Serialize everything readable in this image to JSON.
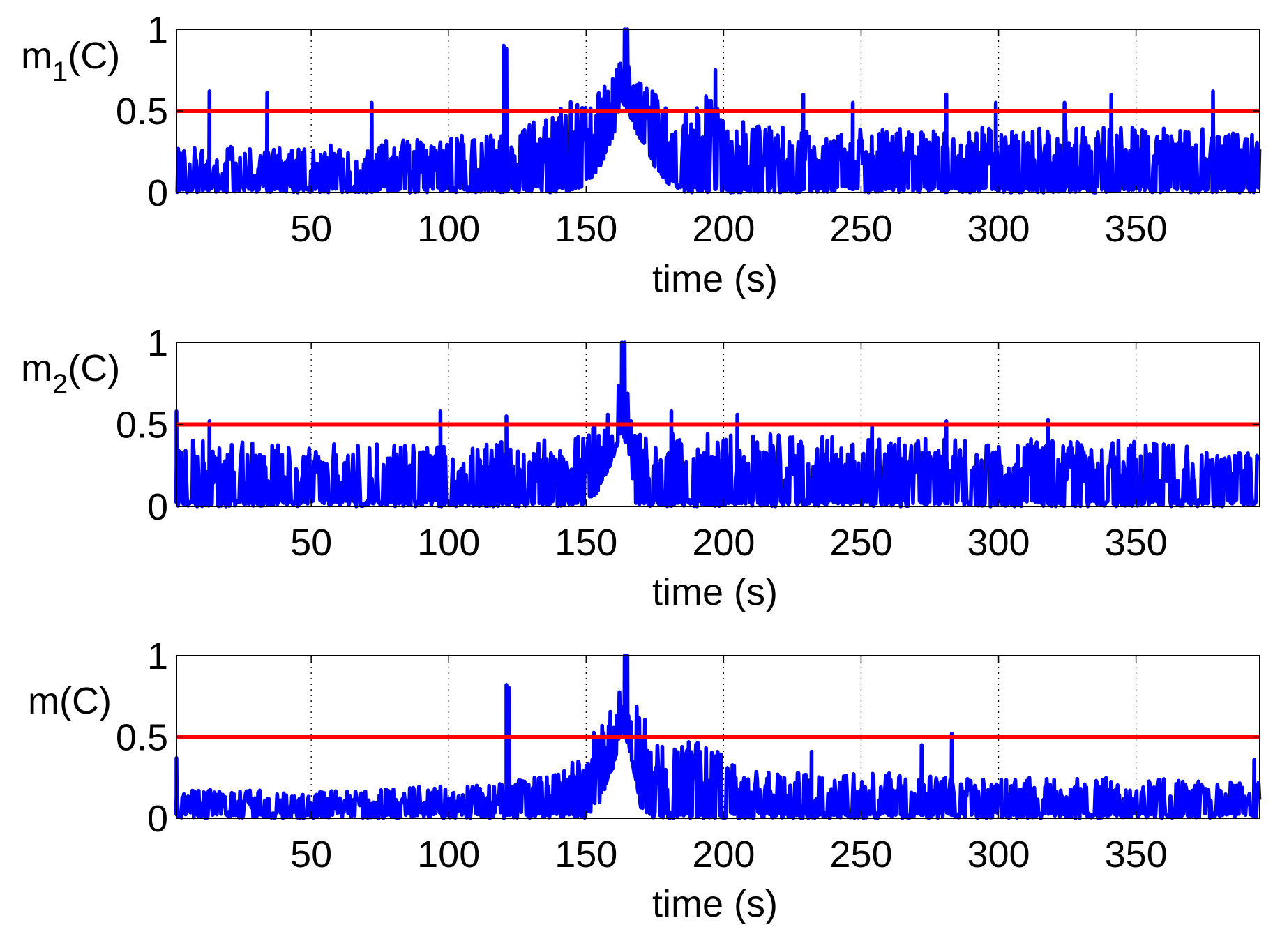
{
  "figure": {
    "background": "#ffffff",
    "signal_color": "#0000ff",
    "threshold_color": "#ff0000",
    "axis_color": "#000000",
    "grid_style": "dotted vertical"
  },
  "chart_data": [
    {
      "type": "line",
      "ylabel": {
        "main": "m",
        "sub": "1",
        "suffix": "(C)"
      },
      "xlabel": "time (s)",
      "xlim": [
        1,
        395
      ],
      "ylim": [
        0,
        1
      ],
      "xticks": [
        50,
        100,
        150,
        200,
        250,
        300,
        350
      ],
      "xtick_labels": [
        "50",
        "100",
        "150",
        "200",
        "250",
        "300",
        "350"
      ],
      "yticks": [
        0,
        0.5,
        1
      ],
      "ytick_labels": [
        "0",
        "0.5",
        "1"
      ],
      "grid": "x-dotted",
      "threshold": 0.5,
      "series": {
        "name": "m1(C)",
        "noise_floor": 0.0,
        "noise_level": 0.24,
        "noise_spread": 0.1,
        "envelope": [
          [
            1,
            0.27
          ],
          [
            20,
            0.28
          ],
          [
            50,
            0.3
          ],
          [
            100,
            0.34
          ],
          [
            120,
            0.38
          ],
          [
            140,
            0.52
          ],
          [
            150,
            0.6
          ],
          [
            155,
            0.66
          ],
          [
            160,
            0.7
          ],
          [
            163,
            0.85
          ],
          [
            166,
            0.82
          ],
          [
            170,
            0.7
          ],
          [
            175,
            0.62
          ],
          [
            180,
            0.55
          ],
          [
            185,
            0.45
          ],
          [
            190,
            0.6
          ],
          [
            195,
            0.7
          ],
          [
            200,
            0.48
          ],
          [
            210,
            0.42
          ],
          [
            250,
            0.4
          ],
          [
            300,
            0.4
          ],
          [
            350,
            0.4
          ],
          [
            395,
            0.38
          ]
        ],
        "floor_envelope": [
          [
            1,
            0.0
          ],
          [
            145,
            0.0
          ],
          [
            150,
            0.05
          ],
          [
            155,
            0.15
          ],
          [
            160,
            0.35
          ],
          [
            163,
            0.55
          ],
          [
            166,
            0.45
          ],
          [
            170,
            0.3
          ],
          [
            175,
            0.15
          ],
          [
            180,
            0.05
          ],
          [
            185,
            0.0
          ],
          [
            395,
            0.0
          ]
        ],
        "spikes": [
          [
            13,
            0.62
          ],
          [
            34,
            0.61
          ],
          [
            72,
            0.55
          ],
          [
            120,
            0.9
          ],
          [
            121,
            0.88
          ],
          [
            164,
            1.0
          ],
          [
            165,
            1.0
          ],
          [
            197,
            0.75
          ],
          [
            229,
            0.6
          ],
          [
            247,
            0.55
          ],
          [
            281,
            0.6
          ],
          [
            299,
            0.55
          ],
          [
            324,
            0.55
          ],
          [
            341,
            0.6
          ],
          [
            378,
            0.62
          ]
        ]
      }
    },
    {
      "type": "line",
      "ylabel": {
        "main": "m",
        "sub": "2",
        "suffix": "(C)"
      },
      "xlabel": "time (s)",
      "xlim": [
        1,
        395
      ],
      "ylim": [
        0,
        1
      ],
      "xticks": [
        50,
        100,
        150,
        200,
        250,
        300,
        350
      ],
      "xtick_labels": [
        "50",
        "100",
        "150",
        "200",
        "250",
        "300",
        "350"
      ],
      "yticks": [
        0,
        0.5,
        1
      ],
      "ytick_labels": [
        "0",
        "0.5",
        "1"
      ],
      "grid": "x-dotted",
      "threshold": 0.5,
      "series": {
        "name": "m2(C)",
        "noise_floor": 0.0,
        "noise_level": 0.24,
        "noise_spread": 0.1,
        "envelope": [
          [
            1,
            0.42
          ],
          [
            50,
            0.38
          ],
          [
            100,
            0.38
          ],
          [
            145,
            0.42
          ],
          [
            152,
            0.47
          ],
          [
            158,
            0.6
          ],
          [
            162,
            0.8
          ],
          [
            165,
            0.75
          ],
          [
            167,
            0.45
          ],
          [
            200,
            0.45
          ],
          [
            250,
            0.42
          ],
          [
            300,
            0.42
          ],
          [
            350,
            0.4
          ],
          [
            395,
            0.32
          ]
        ],
        "floor_envelope": [
          [
            1,
            0.0
          ],
          [
            150,
            0.0
          ],
          [
            155,
            0.1
          ],
          [
            160,
            0.3
          ],
          [
            163,
            0.45
          ],
          [
            166,
            0.3
          ],
          [
            168,
            0.0
          ],
          [
            395,
            0.0
          ]
        ],
        "spikes": [
          [
            1,
            0.58
          ],
          [
            13,
            0.52
          ],
          [
            97,
            0.58
          ],
          [
            121,
            0.55
          ],
          [
            163,
            1.0
          ],
          [
            164,
            1.0
          ],
          [
            181,
            0.58
          ],
          [
            205,
            0.56
          ],
          [
            254,
            0.5
          ],
          [
            281,
            0.52
          ],
          [
            318,
            0.53
          ]
        ]
      }
    },
    {
      "type": "line",
      "ylabel": {
        "main": "m(C)",
        "sub": "",
        "suffix": ""
      },
      "xlabel": "time (s)",
      "xlim": [
        1,
        395
      ],
      "ylim": [
        0,
        1
      ],
      "xticks": [
        50,
        100,
        150,
        200,
        250,
        300,
        350
      ],
      "xtick_labels": [
        "50",
        "100",
        "150",
        "200",
        "250",
        "300",
        "350"
      ],
      "yticks": [
        0,
        0.5,
        1
      ],
      "ytick_labels": [
        "0",
        "0.5",
        "1"
      ],
      "grid": "x-dotted",
      "threshold": 0.5,
      "series": {
        "name": "m(C)",
        "noise_floor": 0.0,
        "noise_level": 0.12,
        "noise_spread": 0.06,
        "envelope": [
          [
            1,
            0.18
          ],
          [
            50,
            0.17
          ],
          [
            100,
            0.2
          ],
          [
            120,
            0.22
          ],
          [
            140,
            0.28
          ],
          [
            148,
            0.4
          ],
          [
            155,
            0.6
          ],
          [
            160,
            0.7
          ],
          [
            163,
            0.85
          ],
          [
            166,
            0.82
          ],
          [
            170,
            0.65
          ],
          [
            175,
            0.5
          ],
          [
            180,
            0.45
          ],
          [
            190,
            0.48
          ],
          [
            197,
            0.5
          ],
          [
            205,
            0.3
          ],
          [
            230,
            0.28
          ],
          [
            260,
            0.28
          ],
          [
            300,
            0.25
          ],
          [
            350,
            0.25
          ],
          [
            395,
            0.22
          ]
        ],
        "floor_envelope": [
          [
            1,
            0.0
          ],
          [
            150,
            0.0
          ],
          [
            155,
            0.1
          ],
          [
            160,
            0.3
          ],
          [
            163,
            0.55
          ],
          [
            166,
            0.4
          ],
          [
            170,
            0.05
          ],
          [
            172,
            0.0
          ],
          [
            395,
            0.0
          ]
        ],
        "spikes": [
          [
            1,
            0.37
          ],
          [
            121,
            0.82
          ],
          [
            122,
            0.8
          ],
          [
            164,
            1.0
          ],
          [
            165,
            1.0
          ],
          [
            232,
            0.41
          ],
          [
            272,
            0.45
          ],
          [
            283,
            0.52
          ],
          [
            393,
            0.36
          ]
        ]
      }
    }
  ]
}
